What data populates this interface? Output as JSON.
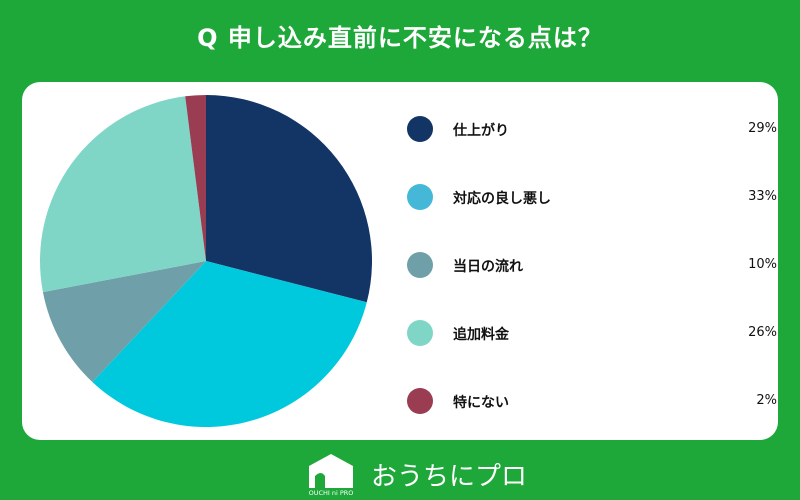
{
  "title": "Q 申し込み直前に不安になる点は？",
  "chart_data": {
    "type": "pie",
    "categories": [
      "仕上がり",
      "対応の良し悪し",
      "当日の流れ",
      "追加料金",
      "特にない"
    ],
    "values": [
      29,
      33,
      10,
      26,
      2
    ],
    "labels": [
      "29%",
      "33%",
      "10%",
      "26%",
      "2%"
    ],
    "colors": [
      "#133566",
      "#00c9de",
      "#6f9fa8",
      "#7fd6c6",
      "#9a3d52"
    ],
    "legend_colors": [
      "#133566",
      "#45b8d8",
      "#6f9fa8",
      "#7fd6c6",
      "#9a3d52"
    ],
    "legend": "right",
    "start": "top, clockwise"
  },
  "footer": {
    "brand": "おうちにプロ",
    "logo_text": "OUCHI ni PRO"
  }
}
